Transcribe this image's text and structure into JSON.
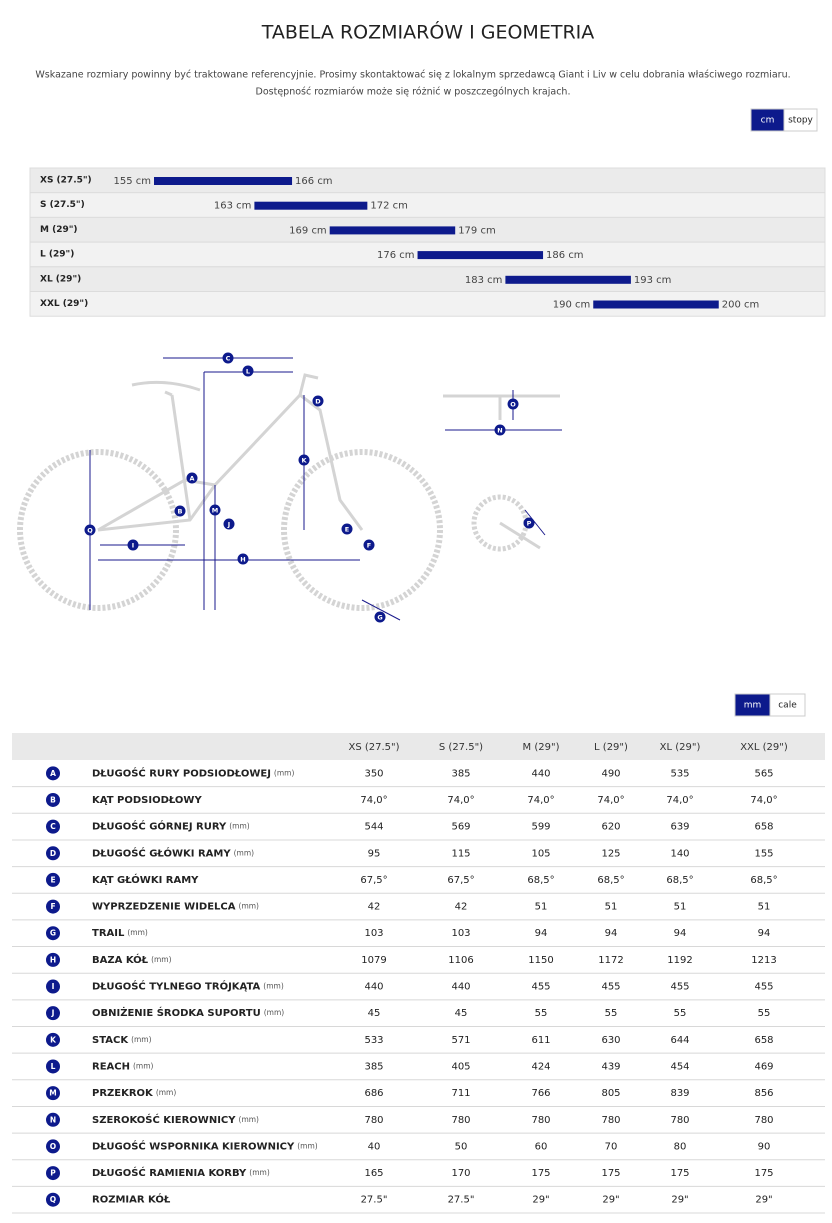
{
  "header": {
    "title": "TABELA ROZMIARÓW I GEOMETRIA",
    "notes": [
      "Wskazane rozmiary powinny być traktowane referencyjnie. Prosimy skontaktować się z lokalnym sprzedawcą Giant i Liv w celu dobrania właściwego rozmiaru.",
      "Dostępność rozmiarów może się różnić w poszczególnych krajach."
    ]
  },
  "size_units": {
    "options": [
      "cm",
      "stopy"
    ],
    "active": 0
  },
  "size_chart": {
    "rows": [
      {
        "size": "XS (27.5\")",
        "min": {
          "value": 155,
          "label": "155 cm"
        },
        "max": {
          "value": 166,
          "label": "166 cm"
        }
      },
      {
        "size": "S (27.5\")",
        "min": {
          "value": 163,
          "label": "163 cm"
        },
        "max": {
          "value": 172,
          "label": "172 cm"
        }
      },
      {
        "size": "M (29\")",
        "min": {
          "value": 169,
          "label": "169 cm"
        },
        "max": {
          "value": 179,
          "label": "179 cm"
        }
      },
      {
        "size": "L (29\")",
        "min": {
          "value": 176,
          "label": "176 cm"
        },
        "max": {
          "value": 186,
          "label": "186 cm"
        }
      },
      {
        "size": "XL (29\")",
        "min": {
          "value": 183,
          "label": "183 cm"
        },
        "max": {
          "value": 193,
          "label": "193 cm"
        }
      },
      {
        "size": "XXL (29\")",
        "min": {
          "value": 190,
          "label": "190 cm"
        },
        "max": {
          "value": 200,
          "label": "200 cm"
        }
      }
    ]
  },
  "geometry_units": {
    "options": [
      "mm",
      "cale"
    ],
    "active": 0
  },
  "table": {
    "columns": [
      "XS (27.5\")",
      "S (27.5\")",
      "M (29\")",
      "L (29\")",
      "XL (29\")",
      "XXL (29\")"
    ],
    "rows": [
      {
        "letter": "A",
        "name": "DŁUGOŚĆ RURY PODSIODŁOWEJ",
        "unit": "(mm)",
        "values": [
          "350",
          "385",
          "440",
          "490",
          "535",
          "565"
        ]
      },
      {
        "letter": "B",
        "name": "KĄT PODSIODŁOWY",
        "values": [
          "74,0°",
          "74,0°",
          "74,0°",
          "74,0°",
          "74,0°",
          "74,0°"
        ]
      },
      {
        "letter": "C",
        "name": "DŁUGOŚĆ GÓRNEJ RURY",
        "unit": "(mm)",
        "values": [
          "544",
          "569",
          "599",
          "620",
          "639",
          "658"
        ]
      },
      {
        "letter": "D",
        "name": "DŁUGOŚĆ GŁÓWKI RAMY",
        "unit": "(mm)",
        "values": [
          "95",
          "115",
          "105",
          "125",
          "140",
          "155"
        ]
      },
      {
        "letter": "E",
        "name": "KĄT GŁÓWKI RAMY",
        "values": [
          "67,5°",
          "67,5°",
          "68,5°",
          "68,5°",
          "68,5°",
          "68,5°"
        ]
      },
      {
        "letter": "F",
        "name": "WYPRZEDZENIE WIDELCA",
        "unit": "(mm)",
        "values": [
          "42",
          "42",
          "51",
          "51",
          "51",
          "51"
        ]
      },
      {
        "letter": "G",
        "name": "TRAIL",
        "unit": "(mm)",
        "values": [
          "103",
          "103",
          "94",
          "94",
          "94",
          "94"
        ]
      },
      {
        "letter": "H",
        "name": "BAZA KÓŁ",
        "unit": "(mm)",
        "values": [
          "1079",
          "1106",
          "1150",
          "1172",
          "1192",
          "1213"
        ]
      },
      {
        "letter": "I",
        "name": "DŁUGOŚĆ TYLNEGO TRÓJKĄTA",
        "unit": "(mm)",
        "values": [
          "440",
          "440",
          "455",
          "455",
          "455",
          "455"
        ]
      },
      {
        "letter": "J",
        "name": "OBNIŻENIE ŚRODKA SUPORTU",
        "unit": "(mm)",
        "values": [
          "45",
          "45",
          "55",
          "55",
          "55",
          "55"
        ]
      },
      {
        "letter": "K",
        "name": "STACK",
        "unit": "(mm)",
        "values": [
          "533",
          "571",
          "611",
          "630",
          "644",
          "658"
        ]
      },
      {
        "letter": "L",
        "name": "REACH",
        "unit": "(mm)",
        "values": [
          "385",
          "405",
          "424",
          "439",
          "454",
          "469"
        ]
      },
      {
        "letter": "M",
        "name": "PRZEKROK",
        "unit": "(mm)",
        "values": [
          "686",
          "711",
          "766",
          "805",
          "839",
          "856"
        ]
      },
      {
        "letter": "N",
        "name": "SZEROKOŚĆ KIEROWNICY",
        "unit": "(mm)",
        "values": [
          "780",
          "780",
          "780",
          "780",
          "780",
          "780"
        ]
      },
      {
        "letter": "O",
        "name": "DŁUGOŚĆ WSPORNIKA KIEROWNICY",
        "unit": "(mm)",
        "values": [
          "40",
          "50",
          "60",
          "70",
          "80",
          "90"
        ]
      },
      {
        "letter": "P",
        "name": "DŁUGOŚĆ RAMIENIA KORBY",
        "unit": "(mm)",
        "values": [
          "165",
          "170",
          "175",
          "175",
          "175",
          "175"
        ]
      },
      {
        "letter": "Q",
        "name": "ROZMIAR KÓŁ",
        "values": [
          "27.5\"",
          "27.5\"",
          "29\"",
          "29\"",
          "29\"",
          "29\""
        ]
      }
    ]
  }
}
